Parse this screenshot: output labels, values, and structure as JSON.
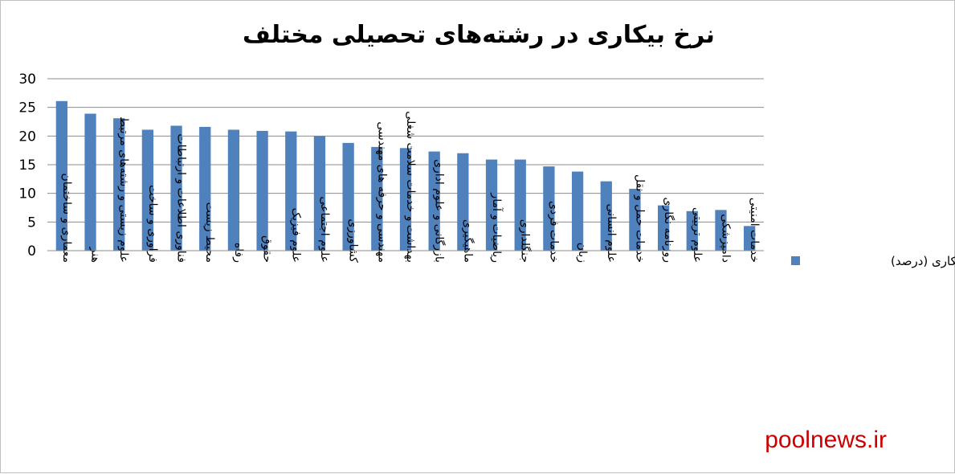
{
  "chart_data": {
    "type": "bar",
    "title": "نرخ بیکاری در رشته‌های تحصیلی مختلف",
    "xlabel": "",
    "ylabel": "",
    "ylim": [
      0,
      30
    ],
    "yticks": [
      0,
      5,
      10,
      15,
      20,
      25,
      30
    ],
    "grid": true,
    "legend_position": "right",
    "bar_color": "#4F81BD",
    "categories": [
      "معماری و ساختمان",
      "هنر",
      "علوم زیستی و رشته‌های مرتبط",
      "فراوری و ساخت",
      "فناوری اطلاعات و ارتباطات",
      "محیط زیست",
      "رفاه",
      "حقوق",
      "علوم فیزیک",
      "علوم اجتماعی",
      "کشاورزی",
      "مهندسی و حرفه های مهندسی",
      "بهداشت و خدمات سلامت شغلی",
      "بازرگانی و علوم اداری",
      "ماهیگیری",
      "ریاضیات و آمار",
      "جنگلداری",
      "خدمات فردی",
      "زبان",
      "علوم انسانی",
      "خدمات حمل و نقل",
      "روزنامه نگاری",
      "علوم تربیتی",
      "دامپزشکی",
      "خدمات امنیتی"
    ],
    "series": [
      {
        "name": "نرخ بیکاری (درصد)",
        "values": [
          26.1,
          23.9,
          23.1,
          21.1,
          21.8,
          21.6,
          21.1,
          20.9,
          20.8,
          20.0,
          18.8,
          18.1,
          17.9,
          17.3,
          17.0,
          15.9,
          15.9,
          14.7,
          13.8,
          12.1,
          10.8,
          7.9,
          6.9,
          7.1,
          4.3
        ]
      }
    ]
  },
  "watermark": "poolnews.ir"
}
